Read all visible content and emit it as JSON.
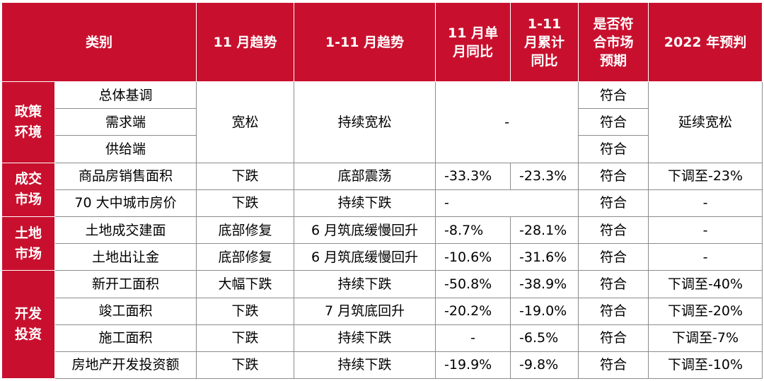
{
  "header": {
    "category": "类别",
    "nov_trend": "11 月趋势",
    "jan_nov_trend": "1-11 月趋势",
    "nov_yoy": "11 月单月同比",
    "ytd_yoy": "1-11 月累计同比",
    "meets_expect": "是否符合市场预期",
    "forecast": "2022 年预判"
  },
  "groups": {
    "policy": "政策环境",
    "trade": "成交市场",
    "land": "土地市场",
    "invest": "开发投资"
  },
  "policy": {
    "items": [
      "总体基调",
      "需求端",
      "供给端"
    ],
    "nov_trend": "宽松",
    "jan_nov_trend": "持续宽松",
    "yoy": "-",
    "meets": [
      "符合",
      "符合",
      "符合"
    ],
    "forecast": "延续宽松"
  },
  "rows": [
    {
      "item": "商品房销售面积",
      "nov_trend": "下跌",
      "jan_nov_trend": "底部震荡",
      "nov_yoy": "-33.3%",
      "ytd_yoy": "-23.3%",
      "meets": "符合",
      "forecast": "下调至-23%"
    },
    {
      "item": "70 大中城市房价",
      "nov_trend": "下跌",
      "jan_nov_trend": "持续下跌",
      "nov_yoy": "-",
      "ytd_yoy": "",
      "meets": "符合",
      "forecast": "-"
    },
    {
      "item": "土地成交建面",
      "nov_trend": "底部修复",
      "jan_nov_trend": "6 月筑底缓慢回升",
      "nov_yoy": "-8.7%",
      "ytd_yoy": "-28.1%",
      "meets": "符合",
      "forecast": "-"
    },
    {
      "item": "土地出让金",
      "nov_trend": "底部修复",
      "jan_nov_trend": "6 月筑底缓慢回升",
      "nov_yoy": "-10.6%",
      "ytd_yoy": "-31.6%",
      "meets": "符合",
      "forecast": "-"
    },
    {
      "item": "新开工面积",
      "nov_trend": "大幅下跌",
      "jan_nov_trend": "持续下跌",
      "nov_yoy": "-50.8%",
      "ytd_yoy": "-38.9%",
      "meets": "符合",
      "forecast": "下调至-40%"
    },
    {
      "item": "竣工面积",
      "nov_trend": "下跌",
      "jan_nov_trend": "7 月筑底回升",
      "nov_yoy": "-20.2%",
      "ytd_yoy": "-19.0%",
      "meets": "符合",
      "forecast": "下调至-20%"
    },
    {
      "item": "施工面积",
      "nov_trend": "下跌",
      "jan_nov_trend": "持续下跌",
      "nov_yoy": "-",
      "ytd_yoy": "-6.5%",
      "meets": "符合",
      "forecast": "下调至-7%"
    },
    {
      "item": "房地产开发投资额",
      "nov_trend": "下跌",
      "jan_nov_trend": "持续下跌",
      "nov_yoy": "-19.9%",
      "ytd_yoy": "-9.8%",
      "meets": "符合",
      "forecast": "下调至-10%"
    }
  ],
  "colors": {
    "header_bg": "#c8102e",
    "header_text": "#ffffff",
    "border": "#8c8c8c"
  }
}
